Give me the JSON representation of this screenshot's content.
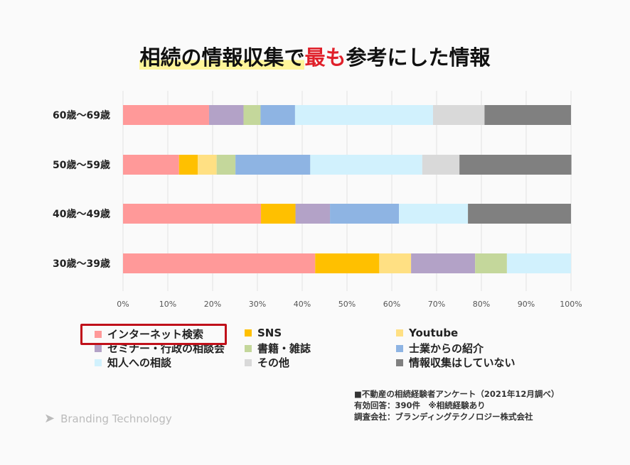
{
  "title": {
    "part1": "相続の情報収集で",
    "part2": "最も",
    "part3": "参考にした情報"
  },
  "chart_data": {
    "type": "bar",
    "orientation": "horizontal",
    "stacked": "percent",
    "categories": [
      "60歳〜69歳",
      "50歳〜59歳",
      "40歳〜49歳",
      "30歳〜39歳"
    ],
    "xlim": [
      0,
      100
    ],
    "tick_labels": [
      "0%",
      "10%",
      "20%",
      "30%",
      "40%",
      "50%",
      "60%",
      "70%",
      "80%",
      "90%",
      "100%"
    ],
    "grid": true,
    "legend_position": "bottom",
    "series": [
      {
        "name": "インターネット検索",
        "color": "#ff9999",
        "values": [
          19.2,
          12.5,
          30.8,
          42.9
        ]
      },
      {
        "name": "SNS",
        "color": "#ffc000",
        "values": [
          0,
          4.2,
          7.7,
          14.3
        ]
      },
      {
        "name": "Youtube",
        "color": "#ffe083",
        "values": [
          0,
          4.2,
          0,
          7.1
        ]
      },
      {
        "name": "セミナー・行政の相談会",
        "color": "#b3a2c7",
        "values": [
          7.7,
          0,
          7.7,
          14.3
        ]
      },
      {
        "name": "書籍・雑誌",
        "color": "#c4d79b",
        "values": [
          3.8,
          4.2,
          0,
          7.1
        ]
      },
      {
        "name": "士業からの紹介",
        "color": "#8eb4e3",
        "values": [
          7.7,
          16.7,
          15.4,
          0
        ]
      },
      {
        "name": "知人への相談",
        "color": "#d1f1fd",
        "values": [
          30.8,
          25.0,
          15.4,
          14.3
        ]
      },
      {
        "name": "その他",
        "color": "#d9d9d9",
        "values": [
          11.5,
          8.3,
          0,
          0
        ]
      },
      {
        "name": "情報収集はしていない",
        "color": "#808080",
        "values": [
          19.3,
          25.0,
          23.0,
          0
        ]
      }
    ]
  },
  "notes": [
    "■不動産の相続経験者アンケート（2021年12月調べ）",
    "有効回答：390件　※相続経験あり",
    "調査会社：ブランディングテクノロジー株式会社"
  ],
  "logo": "Branding Technology"
}
